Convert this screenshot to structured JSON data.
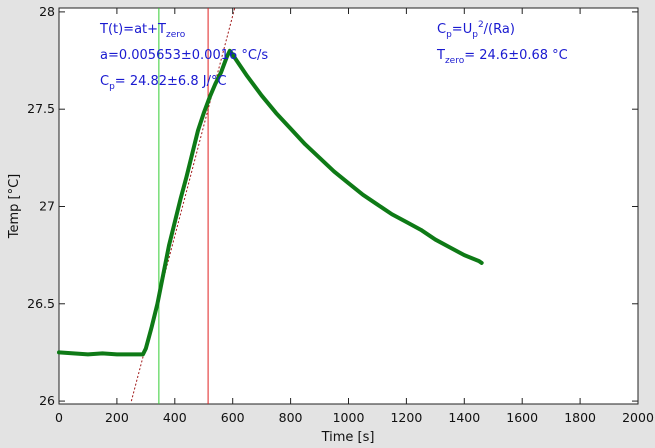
{
  "chart_data": {
    "type": "line",
    "xlabel": "Time [s]",
    "ylabel": "Temp [°C]",
    "xlim": [
      0,
      2000
    ],
    "ylim": [
      25.985,
      28.02
    ],
    "x_ticks": [
      0,
      200,
      400,
      600,
      800,
      1000,
      1200,
      1400,
      1600,
      1800,
      2000
    ],
    "y_ticks": [
      26,
      26.5,
      27,
      27.5,
      28
    ],
    "y_tick_labels": [
      "26",
      "26.5",
      "27",
      "27.5",
      "28"
    ],
    "grid": false,
    "series": [
      {
        "color": "#0e7a16",
        "x": [
          0,
          50,
          100,
          150,
          200,
          250,
          290,
          300,
          320,
          340,
          360,
          380,
          400,
          420,
          440,
          460,
          480,
          500,
          520,
          540,
          560,
          580,
          590,
          600,
          650,
          700,
          750,
          800,
          850,
          900,
          950,
          1000,
          1050,
          1100,
          1150,
          1200,
          1250,
          1300,
          1350,
          1400,
          1450,
          1460
        ],
        "y": [
          26.25,
          26.245,
          26.24,
          26.245,
          26.24,
          26.24,
          26.24,
          26.27,
          26.38,
          26.5,
          26.65,
          26.8,
          26.92,
          27.04,
          27.15,
          27.27,
          27.39,
          27.48,
          27.56,
          27.63,
          27.69,
          27.77,
          27.8,
          27.78,
          27.67,
          27.57,
          27.48,
          27.4,
          27.32,
          27.25,
          27.18,
          27.12,
          27.06,
          27.01,
          26.96,
          26.92,
          26.88,
          26.83,
          26.79,
          26.75,
          26.72,
          26.71
        ]
      }
    ],
    "fit_line": {
      "color": "#a01818",
      "x": [
        250,
        607
      ],
      "y": [
        26.0,
        28.02
      ]
    },
    "vlines": [
      {
        "x": 345,
        "color": "#33cc33"
      },
      {
        "x": 515,
        "color": "#e02020"
      }
    ]
  },
  "annotations": {
    "formula_pre": "T(t)=at+T",
    "formula_sub": "zero",
    "a_text": "a=0.005653±0.0016 °C/s",
    "cp_pre": "C",
    "cp_sub": "p",
    "cp_post": "= 24.82±6.8 J/°C",
    "cpdef_pre": "C",
    "cpdef_sub": "p",
    "cpdef_mid": "=U",
    "cpdef_sub2": "p",
    "cpdef_sup": "2",
    "cpdef_post": "/(Ra)",
    "tzero_pre": "T",
    "tzero_sub": "zero",
    "tzero_post": "= 24.6±0.68 °C"
  }
}
